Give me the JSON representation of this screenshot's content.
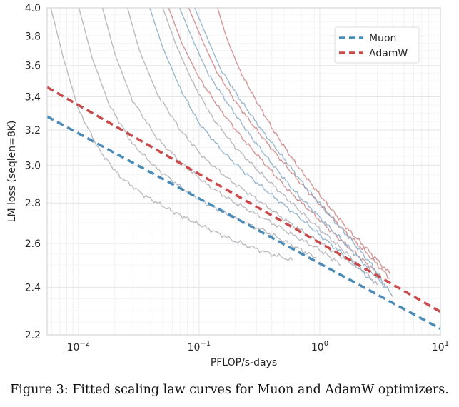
{
  "caption": "Figure 3: Fitted scaling law curves for Muon and AdamW optimizers.",
  "chart_data": {
    "type": "line",
    "title": "",
    "xlabel": "PFLOP/s-days",
    "ylabel": "LM loss (seqlen=8K)",
    "xscale": "log",
    "yscale": "log",
    "xlim": [
      0.0055,
      10
    ],
    "ylim": [
      2.2,
      4.0
    ],
    "x_tick_labels": [
      "10^-2",
      "10^-1",
      "10^0",
      "10^1"
    ],
    "y_ticks": [
      2.2,
      2.4,
      2.6,
      2.8,
      3.0,
      3.2,
      3.4,
      3.6,
      3.8,
      4.0
    ],
    "grid": true,
    "legend_position": "top-right",
    "colors": {
      "muon": "#4a8bb7",
      "adamw": "#c94a4a",
      "gray_run": "#b3b5bb",
      "blue_run": "#8fb0c9",
      "red_run": "#cf8a8a"
    },
    "fit_lines": [
      {
        "name": "Muon",
        "color": "#4a8bb7",
        "x": [
          0.0055,
          10
        ],
        "y": [
          3.28,
          2.225
        ]
      },
      {
        "name": "AdamW",
        "color": "#c94a4a",
        "x": [
          0.0055,
          10
        ],
        "y": [
          3.46,
          2.295
        ]
      }
    ],
    "training_curves": [
      {
        "color": "#b3b5bb",
        "x": [
          0.0059,
          0.0075,
          0.01,
          0.015,
          0.022,
          0.035,
          0.055,
          0.08,
          0.12,
          0.2,
          0.35,
          0.6
        ],
        "y": [
          4.0,
          3.65,
          3.32,
          3.08,
          2.94,
          2.84,
          2.77,
          2.72,
          2.67,
          2.61,
          2.56,
          2.52
        ]
      },
      {
        "color": "#b3b5bb",
        "x": [
          0.0101,
          0.013,
          0.018,
          0.028,
          0.045,
          0.075,
          0.12,
          0.2,
          0.35,
          0.6,
          0.95
        ],
        "y": [
          4.0,
          3.65,
          3.35,
          3.12,
          2.98,
          2.87,
          2.79,
          2.72,
          2.66,
          2.59,
          2.53
        ]
      },
      {
        "color": "#b3b5bb",
        "x": [
          0.0158,
          0.02,
          0.028,
          0.045,
          0.075,
          0.12,
          0.2,
          0.35,
          0.6,
          1.0,
          1.5
        ],
        "y": [
          4.0,
          3.68,
          3.38,
          3.15,
          3.0,
          2.89,
          2.8,
          2.72,
          2.64,
          2.57,
          2.5
        ]
      },
      {
        "color": "#b3b5bb",
        "x": [
          0.0255,
          0.032,
          0.045,
          0.07,
          0.11,
          0.18,
          0.3,
          0.5,
          0.85,
          1.4,
          2.2
        ],
        "y": [
          4.0,
          3.7,
          3.42,
          3.2,
          3.04,
          2.92,
          2.82,
          2.72,
          2.63,
          2.55,
          2.48
        ]
      },
      {
        "color": "#8fb0c9",
        "x": [
          0.039,
          0.05,
          0.07,
          0.1,
          0.16,
          0.26,
          0.42,
          0.7,
          1.1,
          1.8,
          2.8
        ],
        "y": [
          4.0,
          3.72,
          3.45,
          3.24,
          3.07,
          2.94,
          2.83,
          2.72,
          2.62,
          2.52,
          2.42
        ]
      },
      {
        "color": "#b3b5bb",
        "x": [
          0.05,
          0.065,
          0.09,
          0.13,
          0.2,
          0.32,
          0.5,
          0.8,
          1.3,
          2.0,
          3.0
        ],
        "y": [
          4.0,
          3.73,
          3.48,
          3.27,
          3.1,
          2.96,
          2.84,
          2.72,
          2.61,
          2.51,
          2.41
        ]
      },
      {
        "color": "#cf8a8a",
        "x": [
          0.056,
          0.072,
          0.1,
          0.15,
          0.23,
          0.36,
          0.56,
          0.9,
          1.4,
          2.2,
          3.2
        ],
        "y": [
          4.0,
          3.75,
          3.52,
          3.32,
          3.15,
          3.0,
          2.86,
          2.74,
          2.63,
          2.53,
          2.45
        ]
      },
      {
        "color": "#8fb0c9",
        "x": [
          0.069,
          0.09,
          0.12,
          0.18,
          0.27,
          0.4,
          0.6,
          0.95,
          1.5,
          2.3,
          3.5
        ],
        "y": [
          4.0,
          3.76,
          3.54,
          3.34,
          3.16,
          3.01,
          2.87,
          2.74,
          2.62,
          2.51,
          2.4
        ]
      },
      {
        "color": "#cf8a8a",
        "x": [
          0.082,
          0.105,
          0.14,
          0.2,
          0.3,
          0.45,
          0.68,
          1.05,
          1.6,
          2.5,
          3.8
        ],
        "y": [
          4.0,
          3.78,
          3.56,
          3.37,
          3.2,
          3.05,
          2.91,
          2.78,
          2.66,
          2.55,
          2.44
        ]
      },
      {
        "color": "#8fb0c9",
        "x": [
          0.092,
          0.115,
          0.15,
          0.22,
          0.33,
          0.5,
          0.75,
          1.15,
          1.8,
          2.7,
          4.0
        ],
        "y": [
          4.0,
          3.8,
          3.58,
          3.38,
          3.2,
          3.04,
          2.89,
          2.75,
          2.62,
          2.5,
          2.36
        ]
      },
      {
        "color": "#cf8a8a",
        "x": [
          0.142,
          0.17,
          0.22,
          0.3,
          0.42,
          0.6,
          0.85,
          1.2,
          1.7,
          2.5,
          3.8
        ],
        "y": [
          4.0,
          3.78,
          3.56,
          3.37,
          3.19,
          3.03,
          2.9,
          2.78,
          2.67,
          2.57,
          2.46
        ]
      }
    ],
    "series": [
      {
        "name": "Muon",
        "style": "dashed",
        "color": "#4a8bb7"
      },
      {
        "name": "AdamW",
        "style": "dashed",
        "color": "#c94a4a"
      }
    ]
  }
}
